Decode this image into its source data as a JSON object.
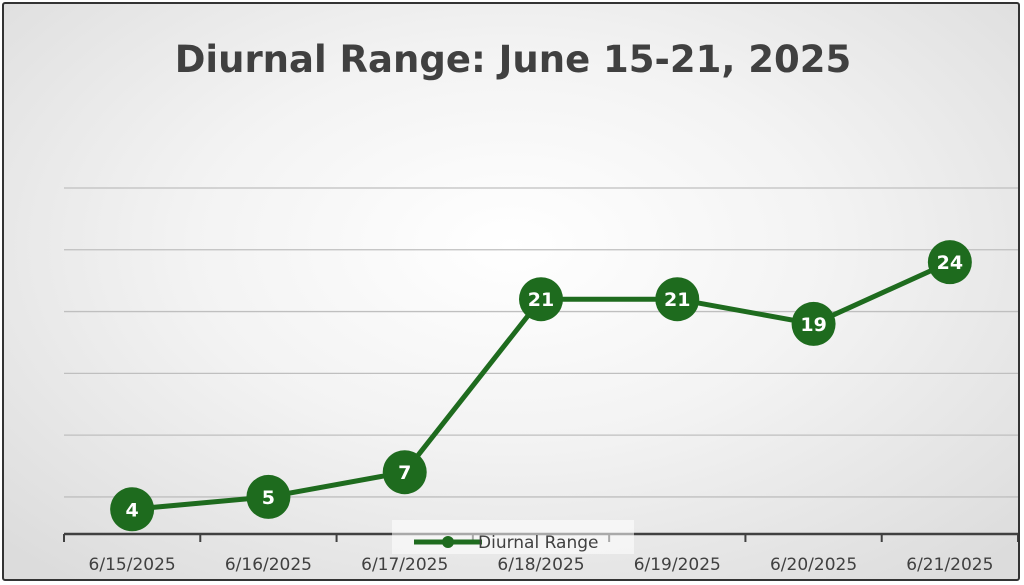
{
  "chart_data": {
    "type": "line",
    "title": "Diurnal Range:  June 15-21, 2025",
    "xlabel": "",
    "ylabel": "",
    "categories": [
      "6/15/2025",
      "6/16/2025",
      "6/17/2025",
      "6/18/2025",
      "6/19/2025",
      "6/20/2025",
      "6/21/2025"
    ],
    "series": [
      {
        "name": "Diurnal Range",
        "values": [
          4,
          5,
          7,
          21,
          21,
          19,
          24
        ],
        "color": "#1e6b1e"
      }
    ],
    "ylim": [
      2,
      30
    ],
    "gridlines": [
      5,
      10,
      15,
      20,
      25,
      30
    ],
    "y_tick_labels_shown": false,
    "data_labels_shown": true,
    "grid": true,
    "legend_position": "bottom",
    "colors": {
      "series": "#1e6b1e",
      "gridline": "#bfbfbf",
      "axis": "#404040",
      "text": "#404040"
    }
  }
}
